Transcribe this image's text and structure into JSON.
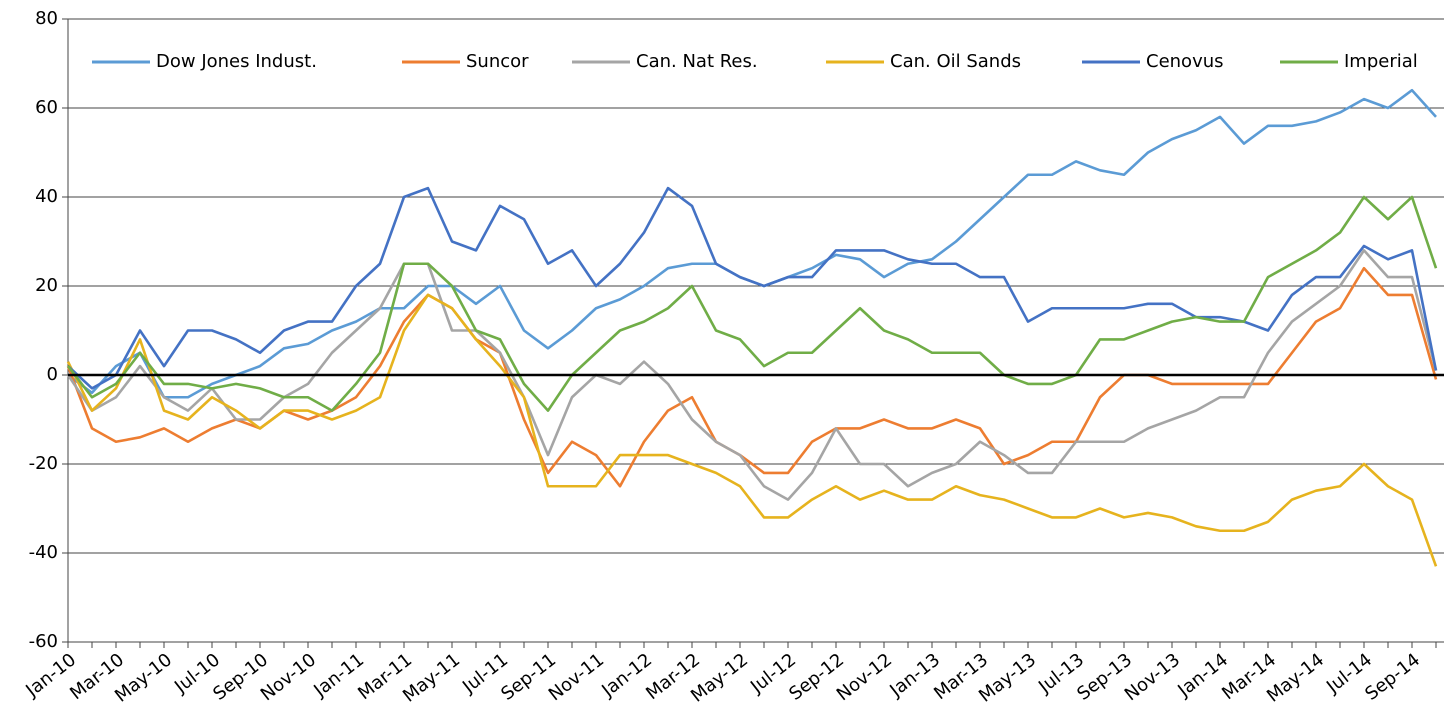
{
  "chart_data": {
    "type": "line",
    "categories": [
      "Jan-10",
      null,
      "Mar-10",
      null,
      "May-10",
      null,
      "Jul-10",
      null,
      "Sep-10",
      null,
      "Nov-10",
      null,
      "Jan-11",
      null,
      "Mar-11",
      null,
      "May-11",
      null,
      "Jul-11",
      null,
      "Sep-11",
      null,
      "Nov-11",
      null,
      "Jan-12",
      null,
      "Mar-12",
      null,
      "May-12",
      null,
      "Jul-12",
      null,
      "Sep-12",
      null,
      "Nov-12",
      null,
      "Jan-13",
      null,
      "Mar-13",
      null,
      "May-13",
      null,
      "Jul-13",
      null,
      "Sep-13",
      null,
      "Nov-13",
      null,
      "Jan-14",
      null,
      "Mar-14",
      null,
      "May-14",
      null,
      "Jul-14",
      null,
      "Sep-14",
      null
    ],
    "series": [
      {
        "name": "Dow Jones Indust.",
        "color": "#5b9bd5",
        "values": [
          0,
          -4,
          2,
          5,
          -5,
          -5,
          -2,
          0,
          2,
          6,
          7,
          10,
          12,
          15,
          15,
          20,
          20,
          16,
          20,
          10,
          6,
          10,
          15,
          17,
          20,
          24,
          25,
          25,
          22,
          20,
          22,
          24,
          27,
          26,
          22,
          25,
          26,
          30,
          35,
          40,
          45,
          45,
          48,
          46,
          45,
          50,
          53,
          55,
          58,
          52,
          56,
          56,
          57,
          59,
          62,
          60,
          64,
          58
        ]
      },
      {
        "name": "Suncor",
        "color": "#ed7d31",
        "values": [
          2,
          -12,
          -15,
          -14,
          -12,
          -15,
          -12,
          -10,
          -12,
          -8,
          -10,
          -8,
          -5,
          2,
          12,
          18,
          15,
          8,
          5,
          -10,
          -22,
          -15,
          -18,
          -25,
          -15,
          -8,
          -5,
          -15,
          -18,
          -22,
          -22,
          -15,
          -12,
          -12,
          -10,
          -12,
          -12,
          -10,
          -12,
          -20,
          -18,
          -15,
          -15,
          -5,
          0,
          0,
          -2,
          -2,
          -2,
          -2,
          -2,
          5,
          12,
          15,
          24,
          18,
          18,
          -1
        ]
      },
      {
        "name": "Can. Nat Res.",
        "color": "#a5a5a5",
        "values": [
          0,
          -8,
          -5,
          2,
          -5,
          -8,
          -3,
          -10,
          -10,
          -5,
          -2,
          5,
          10,
          15,
          25,
          25,
          10,
          10,
          5,
          -5,
          -18,
          -5,
          0,
          -2,
          3,
          -2,
          -10,
          -15,
          -18,
          -25,
          -28,
          -22,
          -12,
          -20,
          -20,
          -25,
          -22,
          -20,
          -15,
          -18,
          -22,
          -22,
          -15,
          -15,
          -15,
          -12,
          -10,
          -8,
          -5,
          -5,
          5,
          12,
          16,
          20,
          28,
          22,
          22,
          1
        ]
      },
      {
        "name": "Can. Oil Sands",
        "color": "#e6b31e",
        "values": [
          3,
          -8,
          -3,
          8,
          -8,
          -10,
          -5,
          -8,
          -12,
          -8,
          -8,
          -10,
          -8,
          -5,
          10,
          18,
          15,
          8,
          2,
          -5,
          -25,
          -25,
          -25,
          -18,
          -18,
          -18,
          -20,
          -22,
          -25,
          -32,
          -32,
          -28,
          -25,
          -28,
          -26,
          -28,
          -28,
          -25,
          -27,
          -28,
          -30,
          -32,
          -32,
          -30,
          -32,
          -31,
          -32,
          -34,
          -35,
          -35,
          -33,
          -28,
          -26,
          -25,
          -20,
          -25,
          -28,
          -43
        ]
      },
      {
        "name": "Cenovus",
        "color": "#4472c4",
        "values": [
          2,
          -3,
          0,
          10,
          2,
          10,
          10,
          8,
          5,
          10,
          12,
          12,
          20,
          25,
          40,
          42,
          30,
          28,
          38,
          35,
          25,
          28,
          20,
          25,
          32,
          42,
          38,
          25,
          22,
          20,
          22,
          22,
          28,
          28,
          28,
          26,
          25,
          25,
          22,
          22,
          12,
          15,
          15,
          15,
          15,
          16,
          16,
          13,
          13,
          12,
          10,
          18,
          22,
          22,
          29,
          26,
          28,
          1
        ]
      },
      {
        "name": "Imperial",
        "color": "#70ad47",
        "values": [
          2,
          -5,
          -2,
          5,
          -2,
          -2,
          -3,
          -2,
          -3,
          -5,
          -5,
          -8,
          -2,
          5,
          25,
          25,
          20,
          10,
          8,
          -2,
          -8,
          0,
          5,
          10,
          12,
          15,
          20,
          10,
          8,
          2,
          5,
          5,
          10,
          15,
          10,
          8,
          5,
          5,
          5,
          0,
          -2,
          -2,
          0,
          8,
          8,
          10,
          12,
          13,
          12,
          12,
          22,
          25,
          28,
          32,
          40,
          35,
          40,
          24
        ]
      }
    ],
    "ylim": [
      -60,
      80
    ],
    "yticks": [
      -60,
      -40,
      -20,
      0,
      20,
      40,
      60,
      80
    ],
    "grid": true,
    "legend": "top"
  }
}
